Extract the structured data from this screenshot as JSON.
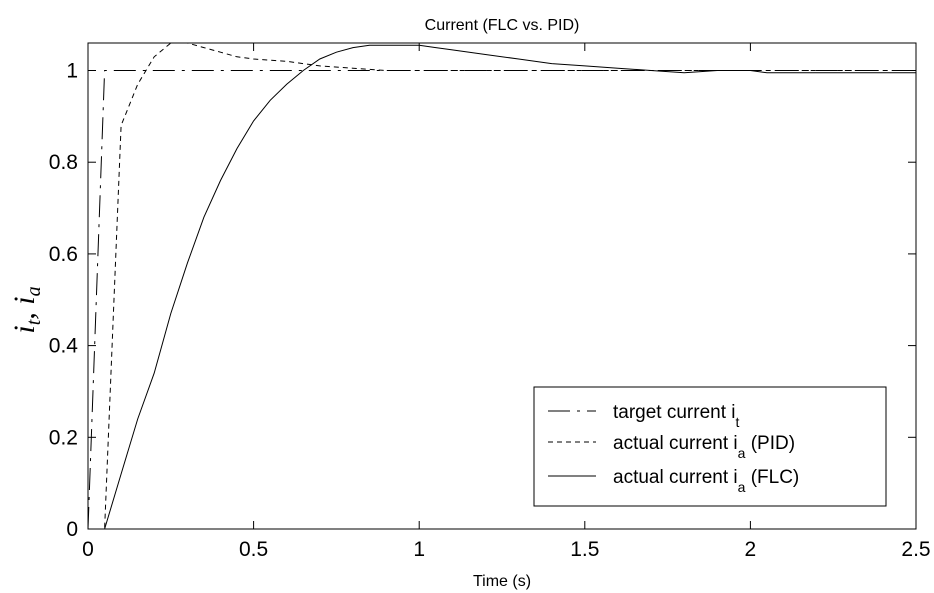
{
  "chart_data": {
    "type": "line",
    "title": "Current (FLC vs. PID)",
    "xlabel": "Time (s)",
    "ylabel": {
      "part1": "i",
      "sub1": "t",
      "sep": ", ",
      "part2": "i",
      "sub2": "a"
    },
    "xlim": [
      0,
      2.5
    ],
    "ylim": [
      0,
      1.06
    ],
    "xticks": [
      0,
      0.5,
      1,
      1.5,
      2,
      2.5
    ],
    "xtick_labels": [
      "0",
      "0.5",
      "1",
      "1.5",
      "2",
      "2.5"
    ],
    "yticks": [
      0,
      0.2,
      0.4,
      0.6,
      0.8,
      1
    ],
    "ytick_labels": [
      "0",
      "0.2",
      "0.4",
      "0.6",
      "0.8",
      "1"
    ],
    "grid": false,
    "legend_position": "bottom-right",
    "legend": [
      {
        "prefix": "target current i",
        "sub": "t",
        "suffix": "",
        "style": "dashdot"
      },
      {
        "prefix": "actual current i",
        "sub": "a",
        "suffix": " (PID)",
        "style": "dashed"
      },
      {
        "prefix": "actual current i",
        "sub": "a",
        "suffix": " (FLC)",
        "style": "solid"
      }
    ],
    "series": [
      {
        "style": "dashdot",
        "x": [
          0,
          0.05,
          2.5
        ],
        "y": [
          0,
          1.0,
          1.0
        ]
      },
      {
        "style": "dashed",
        "x": [
          0,
          0.05,
          0.1,
          0.15,
          0.2,
          0.25,
          0.3,
          0.35,
          0.4,
          0.45,
          0.5,
          0.6,
          0.7,
          0.8,
          0.9,
          1.0,
          1.2,
          1.5,
          2.0,
          2.5
        ],
        "y": [
          0,
          0.0,
          0.88,
          0.97,
          1.03,
          1.06,
          1.06,
          1.05,
          1.04,
          1.03,
          1.025,
          1.02,
          1.01,
          1.005,
          1.0,
          1.0,
          1.0,
          1.0,
          1.0,
          1.0
        ]
      },
      {
        "style": "solid",
        "x": [
          0.05,
          0.1,
          0.15,
          0.2,
          0.25,
          0.3,
          0.35,
          0.4,
          0.45,
          0.5,
          0.55,
          0.6,
          0.65,
          0.7,
          0.75,
          0.8,
          0.85,
          0.9,
          0.95,
          1.0,
          1.05,
          1.1,
          1.2,
          1.3,
          1.4,
          1.5,
          1.6,
          1.7,
          1.8,
          1.9,
          2.0,
          2.05,
          2.1,
          2.2,
          2.5
        ],
        "y": [
          0.0,
          0.12,
          0.24,
          0.34,
          0.47,
          0.58,
          0.68,
          0.76,
          0.83,
          0.89,
          0.935,
          0.97,
          1.0,
          1.025,
          1.04,
          1.05,
          1.055,
          1.055,
          1.055,
          1.055,
          1.05,
          1.045,
          1.035,
          1.025,
          1.015,
          1.01,
          1.005,
          1.0,
          0.995,
          1.0,
          1.0,
          0.995,
          0.995,
          0.995,
          0.995
        ]
      }
    ]
  }
}
